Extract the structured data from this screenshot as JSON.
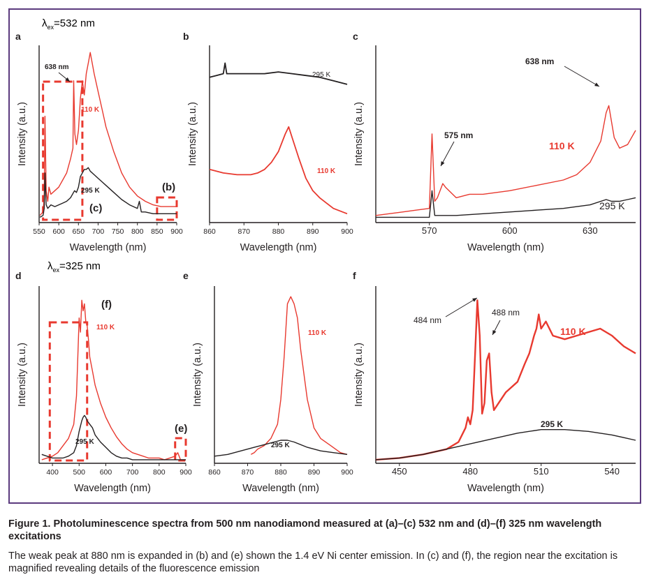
{
  "excitation_labels": {
    "top": "532 nm",
    "bottom": "325 nm"
  },
  "caption": {
    "title": "Figure 1. Photoluminescence spectra from 500 nm nanodiamond measured at (a)–(c) 532 nm and (d)–(f) 325 nm wavelength excitations",
    "body": "The weak peak at 880 nm is expanded in (b) and (e) shown the 1.4 eV Ni center emission. In (c) and (f), the region near the excitation is magnified revealing details of the fluorescence emission"
  },
  "colors": {
    "hot": "#231f20",
    "cold": "#e8392f",
    "frame": "#5b3a7e",
    "box": "#e8392f"
  },
  "chart_data": [
    {
      "panel": "a",
      "type": "line",
      "xlabel": "Wavelength (nm)",
      "ylabel": "Intensity (a.u.)",
      "xlim": [
        550,
        900
      ],
      "xticks": [
        550,
        600,
        650,
        700,
        750,
        800,
        850,
        900
      ],
      "ylim": [
        0,
        100
      ],
      "series": [
        {
          "name": "110 K",
          "color": "#e8392f",
          "x": [
            552,
            560,
            563,
            565,
            568,
            572,
            575,
            580,
            590,
            600,
            610,
            620,
            630,
            636,
            638,
            641,
            645,
            650,
            655,
            660,
            665,
            670,
            675,
            680,
            685,
            690,
            700,
            710,
            720,
            740,
            760,
            780,
            800,
            820,
            840,
            860,
            880,
            900
          ],
          "y": [
            4,
            6,
            14,
            60,
            18,
            12,
            20,
            16,
            18,
            20,
            24,
            28,
            36,
            42,
            80,
            50,
            44,
            52,
            70,
            80,
            72,
            84,
            90,
            96,
            90,
            84,
            74,
            64,
            54,
            40,
            28,
            20,
            15,
            12,
            10,
            9,
            9,
            9
          ]
        },
        {
          "name": "295 K",
          "color": "#231f20",
          "x": [
            552,
            560,
            563,
            565,
            568,
            572,
            580,
            590,
            600,
            610,
            620,
            630,
            640,
            645,
            650,
            655,
            660,
            665,
            670,
            675,
            680,
            690,
            700,
            710,
            720,
            740,
            760,
            780,
            800,
            805,
            810,
            820,
            840,
            860,
            880,
            900
          ],
          "y": [
            3,
            4,
            8,
            28,
            10,
            8,
            10,
            9,
            10,
            11,
            12,
            14,
            18,
            17,
            20,
            26,
            28,
            30,
            30,
            31,
            29,
            27,
            25,
            23,
            21,
            17,
            13,
            10,
            8,
            12,
            6,
            6,
            5,
            5,
            5,
            5
          ]
        }
      ],
      "annotations": [
        "638 nm",
        "110 K",
        "295 K",
        "(b)",
        "(c)"
      ],
      "highlight_regions": [
        {
          "label": "(c)",
          "x": [
            560,
            660
          ]
        },
        {
          "label": "(b)",
          "x": [
            850,
            900
          ]
        }
      ]
    },
    {
      "panel": "b",
      "type": "line",
      "xlabel": "Wavelength (nm)",
      "ylabel": "Intensity (a.u.)",
      "xlim": [
        860,
        900
      ],
      "xticks": [
        860,
        870,
        880,
        890,
        900
      ],
      "ylim": [
        0,
        100
      ],
      "series": [
        {
          "name": "295 K",
          "color": "#231f20",
          "x": [
            860,
            862,
            864,
            864.5,
            865,
            868,
            872,
            876,
            880,
            884,
            888,
            892,
            896,
            900
          ],
          "y": [
            82,
            83,
            84,
            90,
            84,
            84,
            84,
            84,
            85,
            84,
            83,
            82,
            80,
            78
          ]
        },
        {
          "name": "110 K",
          "color": "#e8392f",
          "x": [
            860,
            864,
            868,
            872,
            874,
            876,
            878,
            880,
            882,
            883,
            884,
            886,
            888,
            890,
            892,
            894,
            896,
            900
          ],
          "y": [
            30,
            28,
            27,
            27,
            28,
            30,
            34,
            40,
            50,
            54,
            48,
            36,
            25,
            18,
            14,
            11,
            8,
            5
          ]
        }
      ],
      "annotations": [
        "295 K",
        "110 K"
      ]
    },
    {
      "panel": "c",
      "type": "line",
      "xlabel": "Wavelength (nm)",
      "ylabel": "Intensity (a.u.)",
      "xlim": [
        550,
        647
      ],
      "xticks": [
        570,
        600,
        630
      ],
      "ylim": [
        0,
        100
      ],
      "series": [
        {
          "name": "110 K",
          "color": "#e8392f",
          "x": [
            550,
            560,
            565,
            570,
            571,
            572,
            573,
            575,
            576,
            580,
            585,
            590,
            600,
            610,
            620,
            625,
            630,
            634,
            636,
            637,
            639,
            641,
            644,
            647
          ],
          "y": [
            4,
            6,
            7,
            8,
            50,
            12,
            14,
            22,
            20,
            14,
            16,
            16,
            18,
            21,
            24,
            27,
            34,
            46,
            62,
            66,
            48,
            42,
            44,
            52
          ]
        },
        {
          "name": "295 K",
          "color": "#231f20",
          "x": [
            550,
            560,
            570,
            571,
            572,
            575,
            580,
            590,
            600,
            610,
            620,
            630,
            636,
            638,
            641,
            644,
            647
          ],
          "y": [
            3,
            3,
            3,
            18,
            4,
            4,
            4,
            5,
            6,
            7,
            8,
            10,
            13,
            12,
            12,
            13,
            14
          ]
        }
      ],
      "annotations": [
        "575 nm",
        "638 nm",
        "110 K",
        "295 K"
      ]
    },
    {
      "panel": "d",
      "type": "line",
      "xlabel": "Wavelength (nm)",
      "ylabel": "Intensity (a.u.)",
      "xlim": [
        350,
        900
      ],
      "xticks": [
        400,
        500,
        600,
        700,
        800,
        900
      ],
      "ylim": [
        0,
        100
      ],
      "series": [
        {
          "name": "110 K",
          "color": "#e8392f",
          "x": [
            360,
            380,
            400,
            420,
            440,
            460,
            480,
            490,
            495,
            500,
            505,
            510,
            515,
            520,
            525,
            530,
            535,
            540,
            550,
            560,
            580,
            600,
            620,
            640,
            660,
            680,
            700,
            720,
            740,
            760,
            780,
            800,
            820,
            840,
            860,
            870,
            880,
            890,
            900
          ],
          "y": [
            2,
            3,
            4,
            6,
            10,
            14,
            22,
            38,
            60,
            82,
            74,
            92,
            86,
            90,
            80,
            78,
            70,
            60,
            52,
            44,
            34,
            26,
            20,
            15,
            11,
            8,
            6,
            5,
            4,
            3,
            3,
            3,
            2,
            3,
            4,
            6,
            2,
            2,
            2
          ]
        },
        {
          "name": "295 K",
          "color": "#231f20",
          "x": [
            360,
            400,
            440,
            460,
            480,
            490,
            500,
            510,
            515,
            520,
            525,
            530,
            540,
            550,
            560,
            580,
            600,
            620,
            640,
            660,
            680,
            700,
            750,
            800,
            850,
            900
          ],
          "y": [
            5,
            3,
            3,
            4,
            6,
            10,
            18,
            24,
            26,
            27,
            26,
            24,
            22,
            20,
            16,
            12,
            9,
            6,
            4,
            3,
            3,
            2,
            2,
            2,
            2,
            2
          ]
        }
      ],
      "annotations": [
        "(f)",
        "110 K",
        "295 K",
        "(e)"
      ],
      "highlight_regions": [
        {
          "label": "(f)",
          "x": [
            390,
            530
          ]
        },
        {
          "label": "(e)",
          "x": [
            860,
            900
          ]
        }
      ]
    },
    {
      "panel": "e",
      "type": "line",
      "xlabel": "Wavelength (nm)",
      "ylabel": "Intensity (a.u.)",
      "xlim": [
        860,
        900
      ],
      "xticks": [
        860,
        870,
        880,
        890,
        900
      ],
      "ylim": [
        0,
        100
      ],
      "series": [
        {
          "name": "110 K",
          "color": "#e8392f",
          "x": [
            871,
            872,
            873,
            875,
            877,
            879,
            880,
            881,
            882,
            883,
            884,
            885,
            886,
            888,
            890,
            892,
            895,
            898,
            900
          ],
          "y": [
            5,
            6,
            8,
            10,
            14,
            22,
            36,
            60,
            90,
            94,
            90,
            82,
            64,
            36,
            20,
            14,
            10,
            6,
            5
          ]
        },
        {
          "name": "295 K",
          "color": "#231f20",
          "x": [
            860,
            864,
            868,
            872,
            876,
            880,
            882,
            884,
            888,
            892,
            896,
            900
          ],
          "y": [
            4,
            5,
            7,
            9,
            11,
            13,
            13,
            12,
            9,
            7,
            6,
            5
          ]
        }
      ],
      "annotations": [
        "110 K",
        "295 K"
      ]
    },
    {
      "panel": "f",
      "type": "line",
      "xlabel": "Wavelength (nm)",
      "ylabel": "Intensity (a.u.)",
      "xlim": [
        440,
        550
      ],
      "xticks": [
        450,
        480,
        510,
        540
      ],
      "ylim": [
        0,
        100
      ],
      "series": [
        {
          "name": "110 K",
          "color": "#e8392f",
          "x": [
            440,
            450,
            460,
            470,
            475,
            478,
            479,
            480,
            481,
            482,
            483,
            484,
            485,
            486,
            487,
            488,
            489,
            490,
            492,
            495,
            500,
            503,
            505,
            507,
            508,
            509,
            510,
            512,
            515,
            520,
            525,
            530,
            535,
            540,
            545,
            550
          ],
          "y": [
            2,
            3,
            5,
            8,
            12,
            20,
            26,
            22,
            30,
            60,
            92,
            72,
            28,
            34,
            58,
            62,
            40,
            30,
            34,
            40,
            46,
            56,
            62,
            72,
            76,
            84,
            76,
            80,
            72,
            70,
            72,
            74,
            76,
            72,
            66,
            62
          ]
        },
        {
          "name": "295 K",
          "color": "#231f20",
          "x": [
            440,
            450,
            460,
            470,
            480,
            490,
            500,
            510,
            520,
            530,
            540,
            550
          ],
          "y": [
            2,
            3,
            5,
            8,
            11,
            14,
            17,
            19,
            19,
            18,
            16,
            13
          ]
        }
      ],
      "annotations": [
        "484 nm",
        "488 nm",
        "110 K",
        "295 K"
      ]
    }
  ]
}
